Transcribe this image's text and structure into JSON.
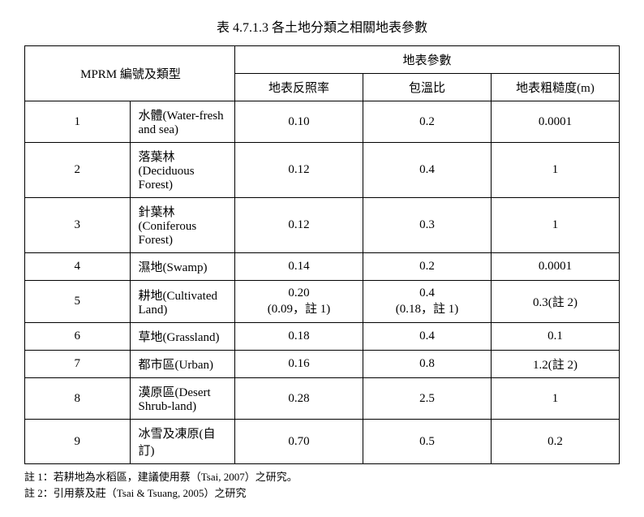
{
  "title": "表 4.7.1.3 各土地分類之相關地表參數",
  "header": {
    "mprm": "MPRM 編號及類型",
    "params": "地表參數",
    "col_albedo": "地表反照率",
    "col_bowen": "包溫比",
    "col_roughness": "地表粗糙度(m)"
  },
  "rows": [
    {
      "n": "1",
      "type": "水體(Water-fresh and sea)",
      "albedo": "0.10",
      "bowen": "0.2",
      "rough": "0.0001"
    },
    {
      "n": "2",
      "type": "落葉林(Deciduous Forest)",
      "albedo": "0.12",
      "bowen": "0.4",
      "rough": "1"
    },
    {
      "n": "3",
      "type": "針葉林(Coniferous Forest)",
      "albedo": "0.12",
      "bowen": "0.3",
      "rough": "1"
    },
    {
      "n": "4",
      "type": "濕地(Swamp)",
      "albedo": "0.14",
      "bowen": "0.2",
      "rough": "0.0001"
    },
    {
      "n": "5",
      "type": "耕地(Cultivated Land)",
      "albedo": "0.20\n(0.09，註 1)",
      "bowen": "0.4\n(0.18，註 1)",
      "rough": "0.3(註 2)"
    },
    {
      "n": "6",
      "type": "草地(Grassland)",
      "albedo": "0.18",
      "bowen": "0.4",
      "rough": "0.1"
    },
    {
      "n": "7",
      "type": "都市區(Urban)",
      "albedo": "0.16",
      "bowen": "0.8",
      "rough": "1.2(註 2)"
    },
    {
      "n": "8",
      "type": "漠原區(Desert Shrub-land)",
      "albedo": "0.28",
      "bowen": "2.5",
      "rough": "1"
    },
    {
      "n": "9",
      "type": "冰雪及凍原(自訂)",
      "albedo": "0.70",
      "bowen": "0.5",
      "rough": "0.2"
    }
  ],
  "footnotes": [
    "註 1：若耕地為水稻區，建議使用蔡（Tsai, 2007）之研究。",
    "註 2：引用蔡及莊（Tsai & Tsuang, 2005）之研究"
  ]
}
